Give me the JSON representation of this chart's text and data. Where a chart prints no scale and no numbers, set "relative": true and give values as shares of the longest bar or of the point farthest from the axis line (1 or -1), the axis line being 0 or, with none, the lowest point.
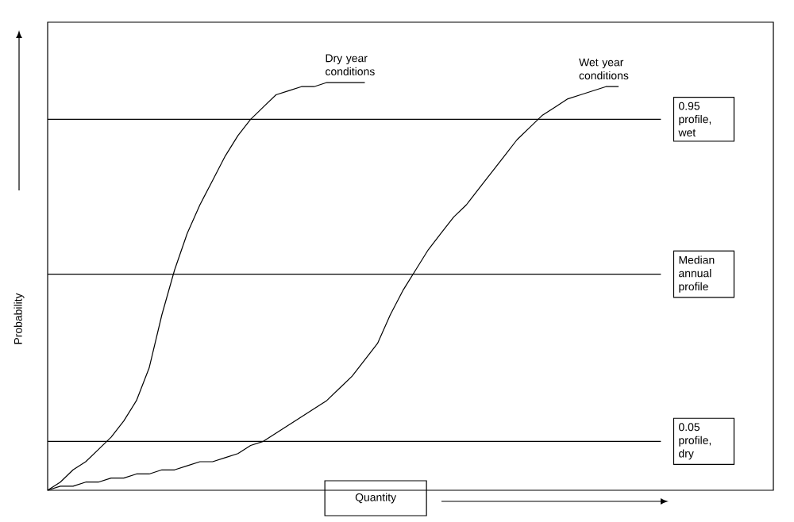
{
  "chart_data": {
    "type": "line",
    "relative": true,
    "xlabel": "Quantity",
    "ylabel": "Probability",
    "categories": [
      null,
      null,
      null,
      null,
      null,
      null,
      null,
      null,
      null,
      null,
      null,
      null,
      null,
      null,
      null,
      null,
      null,
      null,
      null,
      null,
      null,
      null,
      null,
      null,
      null,
      null,
      null,
      null,
      null,
      null,
      null,
      null,
      null,
      null,
      null,
      null,
      null,
      null,
      null,
      null,
      null,
      null,
      null,
      null,
      null,
      null,
      null,
      null,
      null,
      null,
      null,
      null,
      null,
      null,
      null,
      null,
      null,
      null
    ],
    "series": [
      {
        "color": "#000000",
        "values": [
          0,
          0.02,
          0.05,
          0.07,
          0.1,
          0.13,
          0.17,
          0.22,
          0.3,
          0.43,
          0.54,
          0.63,
          0.7,
          0.76,
          0.82,
          0.87,
          0.91,
          0.94,
          0.97,
          0.98,
          0.99,
          0.99,
          1.0,
          1.0,
          1.0,
          1.0,
          null,
          null,
          null,
          null,
          null,
          null,
          null,
          null,
          null,
          null,
          null,
          null,
          null,
          null,
          null,
          null,
          null,
          null,
          null,
          null,
          null,
          null,
          null,
          null,
          null,
          null,
          null,
          null,
          null,
          null,
          null,
          null
        ]
      },
      {
        "color": "#000000",
        "values": [
          0,
          0.01,
          0.01,
          0.02,
          0.02,
          0.03,
          0.03,
          0.04,
          0.04,
          0.05,
          0.05,
          0.06,
          0.07,
          0.07,
          0.08,
          0.09,
          0.11,
          0.12,
          0.14,
          0.16,
          0.18,
          0.2,
          0.22,
          0.25,
          0.28,
          0.32,
          0.36,
          0.43,
          0.49,
          0.54,
          0.59,
          0.63,
          0.67,
          0.7,
          0.74,
          0.78,
          0.82,
          0.86,
          0.89,
          0.92,
          0.94,
          0.96,
          0.97,
          0.98,
          0.99,
          0.99,
          null,
          null,
          null,
          null,
          null,
          null,
          null,
          null,
          null,
          null,
          null,
          null
        ]
      }
    ],
    "ref_lines": [
      {
        "axis": "y",
        "value": 0.91,
        "label": "0.95 profile, wet",
        "color": "#000000"
      },
      {
        "axis": "y",
        "value": 0.53,
        "label": "Median annual profile",
        "color": "#000000"
      },
      {
        "axis": "y",
        "value": 0.12,
        "label": "0.05 profile, dry",
        "color": "#000000"
      }
    ],
    "annotations": [
      "Dry year conditions",
      "Wet year conditions"
    ]
  }
}
